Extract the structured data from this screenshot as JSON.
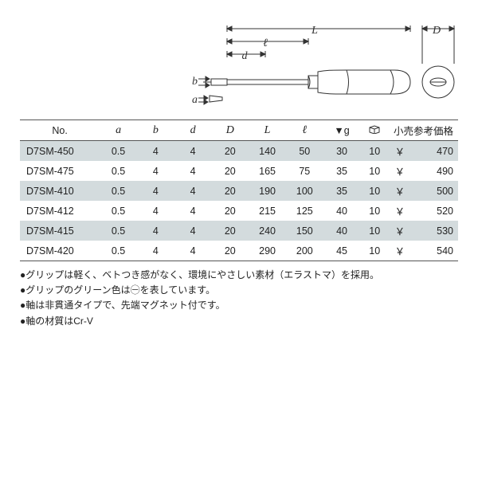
{
  "diagram": {
    "labels": {
      "L": "L",
      "l": "ℓ",
      "d": "d",
      "b": "b",
      "a": "a",
      "D": "D"
    },
    "stroke": "#333333",
    "fill": "#ffffff"
  },
  "table": {
    "headers": {
      "no": "No.",
      "a": "a",
      "b": "b",
      "d": "d",
      "D": "D",
      "L": "L",
      "l": "ℓ",
      "g": "▼g",
      "price": "小売参考価格"
    },
    "yen": "￥",
    "rows": [
      {
        "model": "D7SM-450",
        "a": "0.5",
        "b": "4",
        "d": "4",
        "D": "20",
        "L": "140",
        "l": "50",
        "g": "30",
        "box": "10",
        "price": "470"
      },
      {
        "model": "D7SM-475",
        "a": "0.5",
        "b": "4",
        "d": "4",
        "D": "20",
        "L": "165",
        "l": "75",
        "g": "35",
        "box": "10",
        "price": "490"
      },
      {
        "model": "D7SM-410",
        "a": "0.5",
        "b": "4",
        "d": "4",
        "D": "20",
        "L": "190",
        "l": "100",
        "g": "35",
        "box": "10",
        "price": "500"
      },
      {
        "model": "D7SM-412",
        "a": "0.5",
        "b": "4",
        "d": "4",
        "D": "20",
        "L": "215",
        "l": "125",
        "g": "40",
        "box": "10",
        "price": "520"
      },
      {
        "model": "D7SM-415",
        "a": "0.5",
        "b": "4",
        "d": "4",
        "D": "20",
        "L": "240",
        "l": "150",
        "g": "40",
        "box": "10",
        "price": "530"
      },
      {
        "model": "D7SM-420",
        "a": "0.5",
        "b": "4",
        "d": "4",
        "D": "20",
        "L": "290",
        "l": "200",
        "g": "45",
        "box": "10",
        "price": "540"
      }
    ],
    "row_colors": {
      "even": "#d3dbdd",
      "odd": "#ffffff"
    },
    "border_color": "#555555"
  },
  "notes": [
    "●グリップは軽く、ベトつき感がなく、環境にやさしい素材（エラストマ）を採用。",
    "●グリップのグリーン色は㊀を表しています。",
    "●軸は非貫通タイプで、先端マグネット付です。",
    "●軸の材質はCr-V"
  ]
}
